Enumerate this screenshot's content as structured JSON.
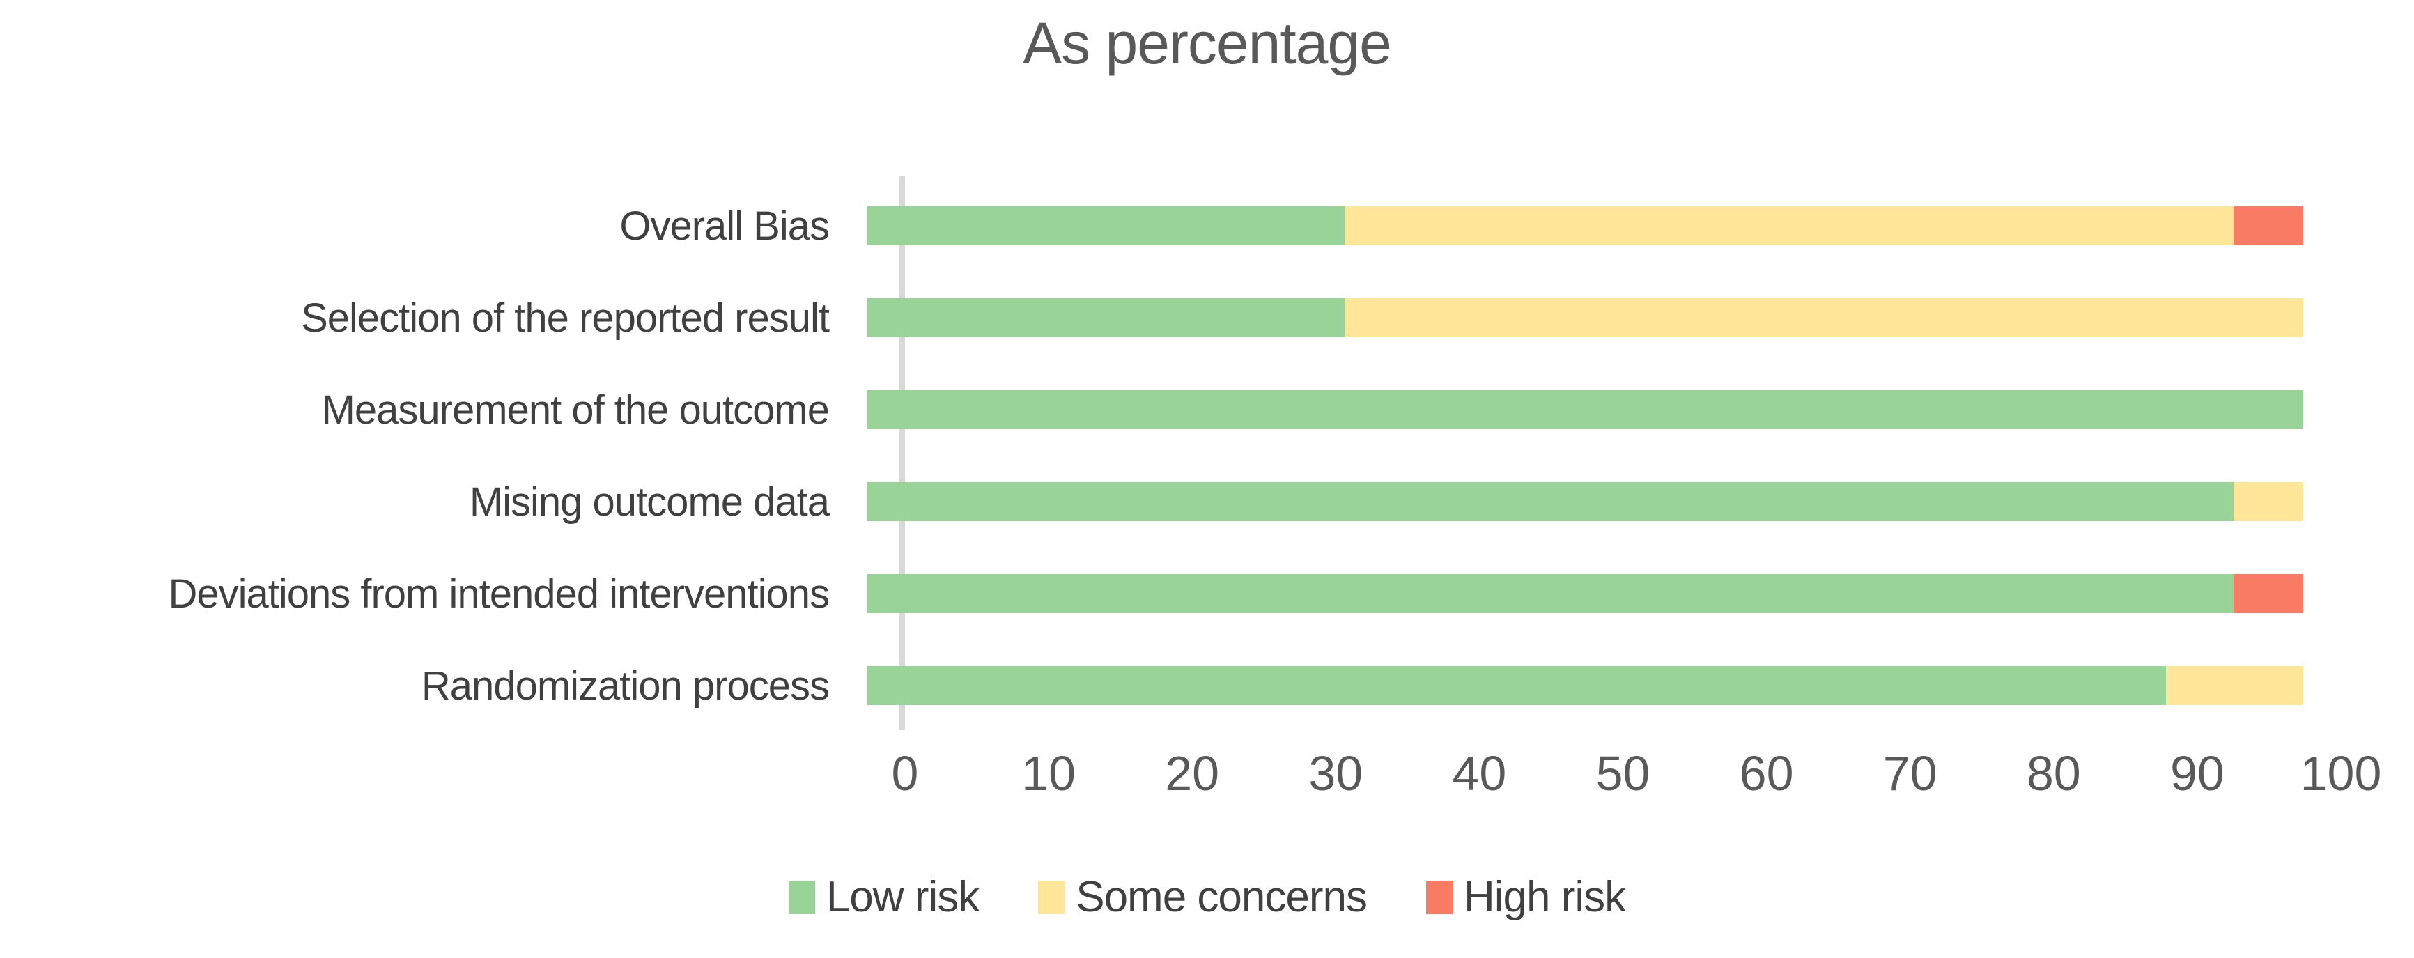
{
  "title": "As percentage",
  "colors": {
    "low_risk": "#9AD398",
    "some_concerns": "#FFE699",
    "high_risk": "#F97B64",
    "axis_line": "#D9D9D9",
    "title_text": "#595959",
    "category_text": "#404040",
    "tick_text": "#595959"
  },
  "chart_data": {
    "type": "bar",
    "orientation": "horizontal",
    "stacked": true,
    "title": "As percentage",
    "categories": [
      "Overall Bias",
      "Selection of the reported result",
      "Measurement of the outcome",
      "Mising outcome data",
      "Deviations from intended interventions",
      "Randomization process"
    ],
    "series": [
      {
        "name": "Low risk",
        "color": "#9AD398",
        "values": [
          33.3,
          33.3,
          100,
          95.2,
          95.2,
          90.5
        ]
      },
      {
        "name": "Some concerns",
        "color": "#FFE699",
        "values": [
          61.9,
          66.7,
          0,
          4.8,
          0,
          9.5
        ]
      },
      {
        "name": "High risk",
        "color": "#F97B64",
        "values": [
          4.8,
          0,
          0,
          0,
          4.8,
          0
        ]
      }
    ],
    "xlim": [
      0,
      100
    ],
    "x_ticks": [
      0,
      10,
      20,
      30,
      40,
      50,
      60,
      70,
      80,
      90,
      100
    ],
    "grid": false,
    "legend_position": "bottom"
  }
}
